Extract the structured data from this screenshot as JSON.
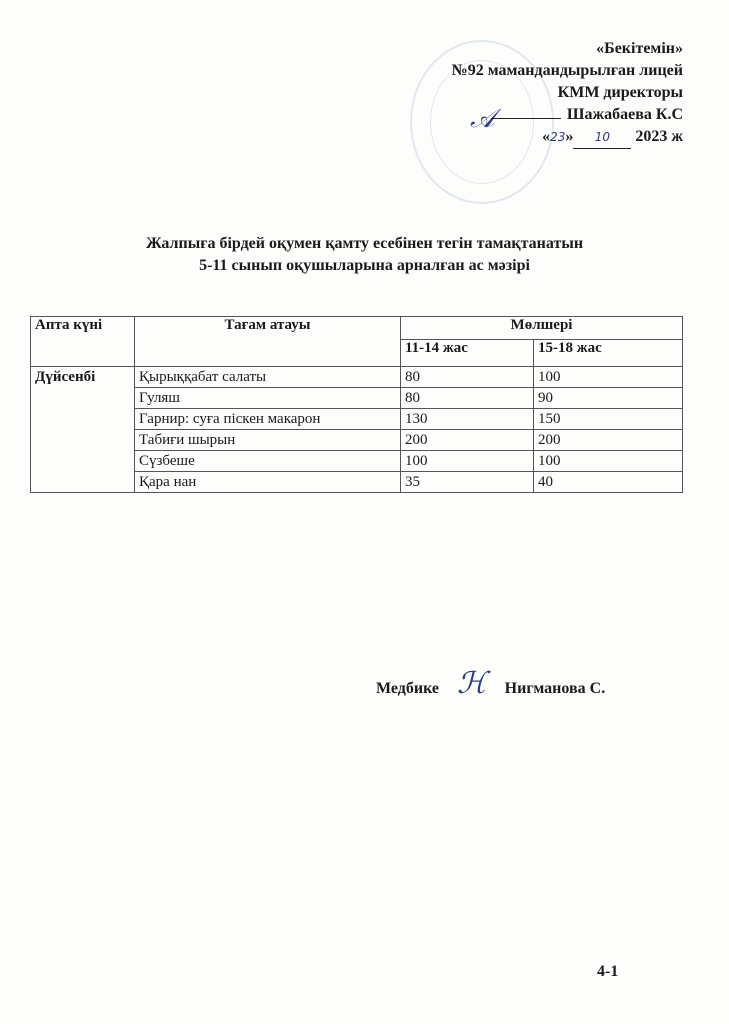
{
  "approval": {
    "heading": "«Бекітемін»",
    "org": "№92 мамандандырылған лицей",
    "position": "КММ директоры",
    "name": "Шажабаева К.С",
    "date_day": "23",
    "date_month": "10",
    "date_year": "2023 ж"
  },
  "title": {
    "line1": "Жалпыға бірдей оқумен қамту есебінен тегін тамақтанатын",
    "line2": "5-11 сынып оқушыларына арналған ас мәзірі"
  },
  "table": {
    "headers": {
      "day": "Апта күні",
      "dish": "Тағам атауы",
      "amount": "Мөлшері",
      "age1": "11-14 жас",
      "age2": "15-18 жас"
    },
    "day": "Дүйсенбі",
    "rows": [
      {
        "dish": "Қырыққабат салаты",
        "a": "80",
        "b": "100"
      },
      {
        "dish": "Гуляш",
        "a": "80",
        "b": "90"
      },
      {
        "dish": "Гарнир: суға піскен макарон",
        "a": "130",
        "b": "150"
      },
      {
        "dish": "Табиғи шырын",
        "a": "200",
        "b": "200"
      },
      {
        "dish": "Сүзбеше",
        "a": "100",
        "b": "100"
      },
      {
        "dish": "Қара нан",
        "a": "35",
        "b": "40"
      }
    ]
  },
  "footer": {
    "role": "Медбике",
    "name": "Нигманова С.",
    "page": "4-1"
  }
}
